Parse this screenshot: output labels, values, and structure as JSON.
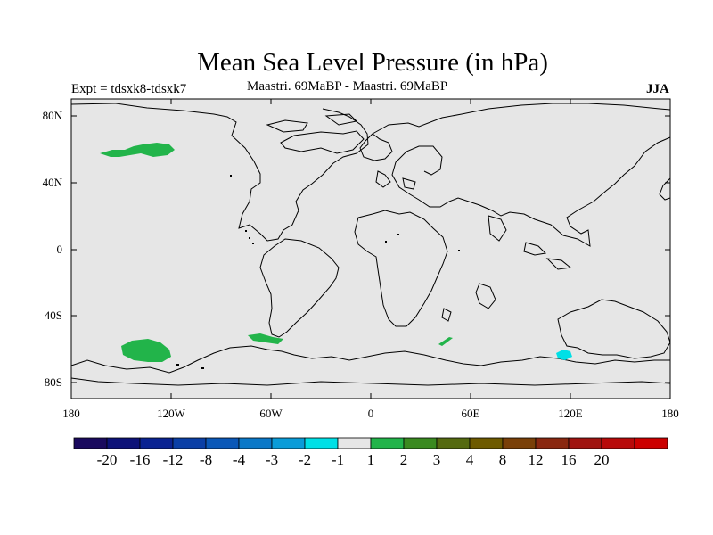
{
  "title": "Mean Sea Level Pressure (in hPa)",
  "left_label": "Expt = tdsxk8-tdsxk7",
  "center_label": "Maastri.  69MaBP - Maastri.  69MaBP",
  "season_label": "JJA",
  "map": {
    "background_color": "#e6e6e6",
    "lat_ticks": [
      "80N",
      "40N",
      "0",
      "40S",
      "80S"
    ],
    "lon_ticks": [
      "180",
      "120W",
      "60W",
      "0",
      "60E",
      "120E",
      "180"
    ]
  },
  "colorbar": {
    "colors": [
      "#1a0a5e",
      "#0d1278",
      "#0a2392",
      "#0a3fa6",
      "#0a58b8",
      "#0a78c8",
      "#0a9cd8",
      "#00e0e6",
      "#e6e6e6",
      "#22b44a",
      "#3a8a20",
      "#556a10",
      "#6e5a00",
      "#7a4008",
      "#8a2810",
      "#a01410",
      "#b80a0a",
      "#cc0000"
    ],
    "labels": [
      "-20",
      "-16",
      "-12",
      "-8",
      "-4",
      "-3",
      "-2",
      "-1",
      "1",
      "2",
      "3",
      "4",
      "8",
      "12",
      "16",
      "20"
    ]
  },
  "anomalies": [
    {
      "name": "north-pacific-positive",
      "color": "#22b44a"
    },
    {
      "name": "south-pacific-positive",
      "color": "#22b44a"
    },
    {
      "name": "south-america-positive",
      "color": "#22b44a"
    },
    {
      "name": "indian-ocean-positive",
      "color": "#22b44a"
    },
    {
      "name": "australia-negative",
      "color": "#00e0e6"
    }
  ]
}
